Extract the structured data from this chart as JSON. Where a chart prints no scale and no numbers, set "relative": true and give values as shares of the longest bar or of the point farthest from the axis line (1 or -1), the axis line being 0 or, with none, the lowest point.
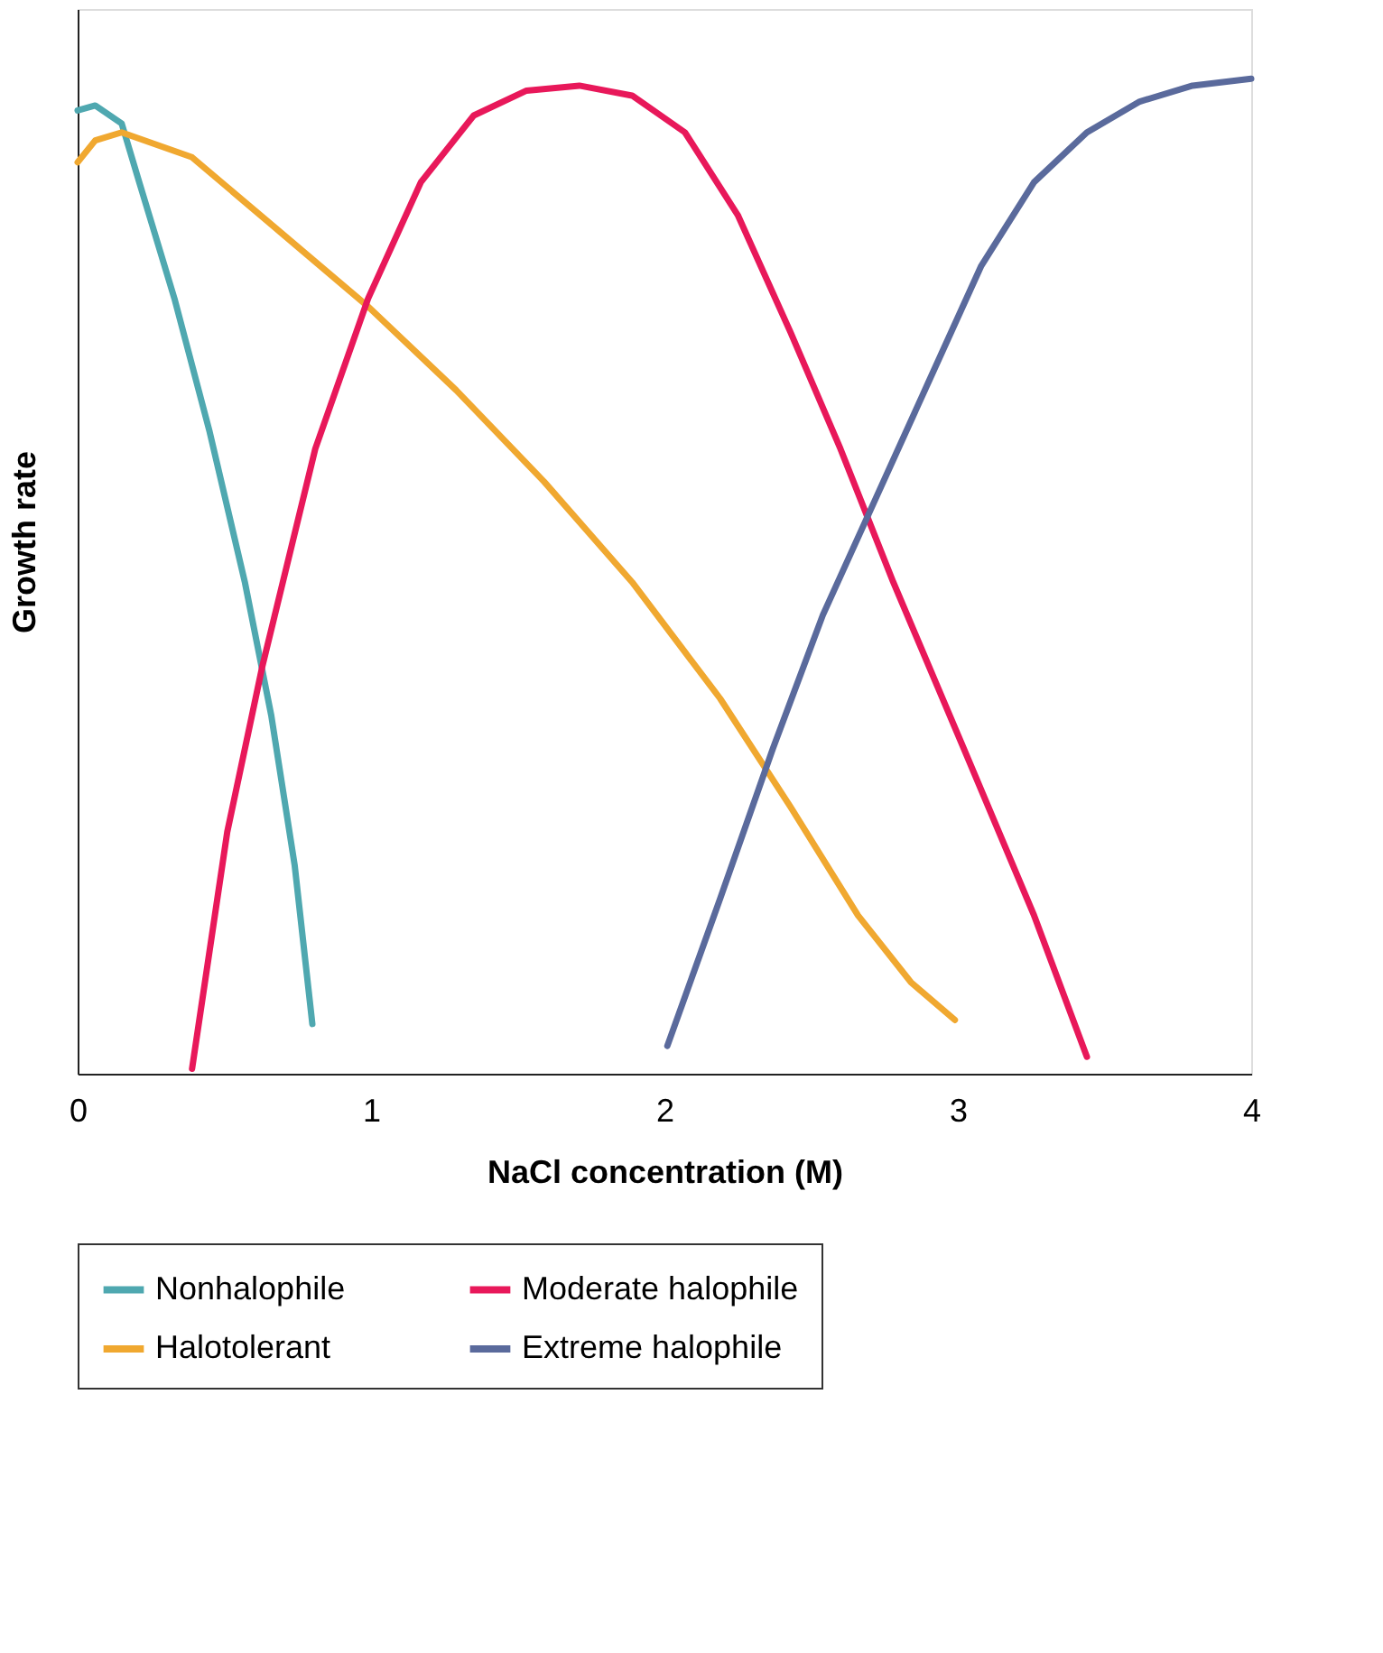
{
  "chart_data": {
    "type": "line",
    "relative": true,
    "xlabel": "NaCl concentration (M)",
    "ylabel": "Growth rate",
    "xlim": [
      0,
      4
    ],
    "xticks": [
      0,
      1,
      2,
      3,
      4
    ],
    "grid": false,
    "legend": "bottom",
    "marker": "none",
    "line_style": "solid",
    "tick_labels": "x",
    "series": [
      {
        "name": "Nonhalophile",
        "color": "#4fa8b0",
        "x": [
          0,
          0.06,
          0.15,
          0.21,
          0.33,
          0.45,
          0.57,
          0.66,
          0.74,
          0.8
        ],
        "values": [
          0.968,
          0.973,
          0.955,
          0.896,
          0.779,
          0.645,
          0.494,
          0.36,
          0.209,
          0.05
        ]
      },
      {
        "name": "Halotolerant",
        "color": "#f0a830",
        "x": [
          0,
          0.06,
          0.15,
          0.39,
          0.69,
          0.99,
          1.29,
          1.59,
          1.89,
          2.19,
          2.43,
          2.66,
          2.84,
          2.99
        ],
        "values": [
          0.916,
          0.938,
          0.946,
          0.921,
          0.846,
          0.771,
          0.687,
          0.595,
          0.494,
          0.377,
          0.268,
          0.159,
          0.092,
          0.054
        ]
      },
      {
        "name": "Moderate halophile",
        "color": "#e8185a",
        "x": [
          0.39,
          0.51,
          0.63,
          0.81,
          0.99,
          1.17,
          1.35,
          1.53,
          1.71,
          1.89,
          2.07,
          2.25,
          2.43,
          2.6,
          2.78,
          3.02,
          3.26,
          3.44
        ],
        "values": [
          0.005,
          0.243,
          0.41,
          0.628,
          0.779,
          0.896,
          0.963,
          0.988,
          0.993,
          0.983,
          0.946,
          0.863,
          0.745,
          0.628,
          0.494,
          0.327,
          0.159,
          0.017
        ]
      },
      {
        "name": "Extreme halophile",
        "color": "#5a6a9c",
        "x": [
          2.01,
          2.19,
          2.37,
          2.54,
          2.72,
          2.9,
          3.08,
          3.26,
          3.44,
          3.62,
          3.8,
          4.0
        ],
        "values": [
          0.028,
          0.176,
          0.327,
          0.461,
          0.578,
          0.695,
          0.812,
          0.896,
          0.946,
          0.977,
          0.993,
          1.0
        ]
      }
    ]
  }
}
